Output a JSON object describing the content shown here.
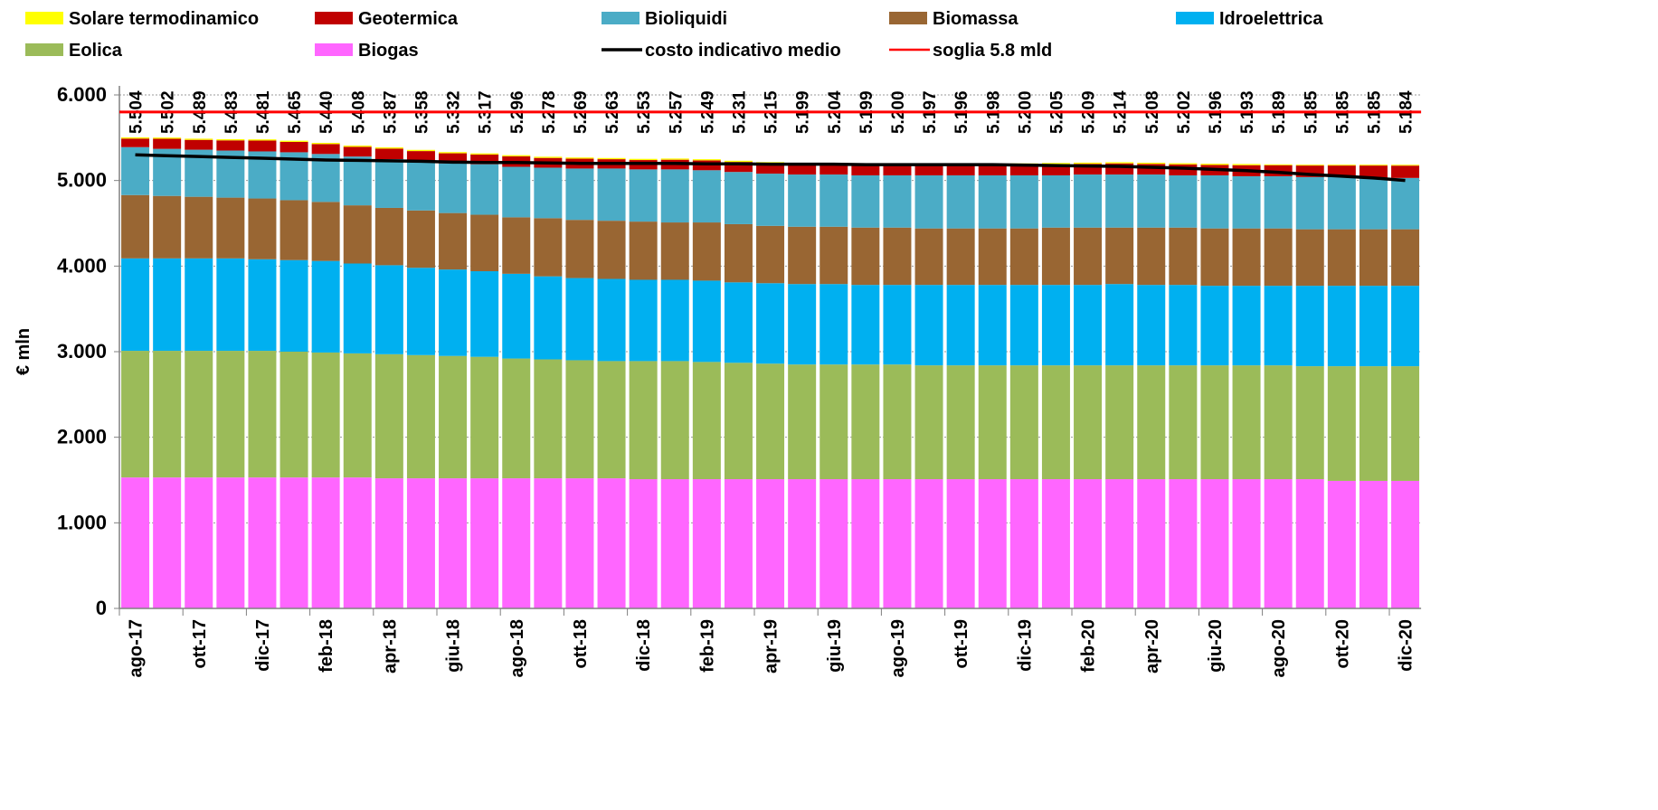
{
  "chart_data": {
    "type": "bar",
    "stacked": true,
    "y_label": "€ mln",
    "categories": [
      "ago-17",
      null,
      "ott-17",
      null,
      "dic-17",
      null,
      "feb-18",
      null,
      "apr-18",
      null,
      "giu-18",
      null,
      "ago-18",
      null,
      "ott-18",
      null,
      "dic-18",
      null,
      "feb-19",
      null,
      "apr-19",
      null,
      "giu-19",
      null,
      "ago-19",
      null,
      "ott-19",
      null,
      "dic-19",
      null,
      "feb-20",
      null,
      "apr-20",
      null,
      "giu-20",
      null,
      "ago-20",
      null,
      "ott-20",
      null,
      "dic-20"
    ],
    "ylim": [
      0,
      6000
    ],
    "yticks": [
      {
        "value": 0,
        "label": "0"
      },
      {
        "value": 1000,
        "label": "1.000"
      },
      {
        "value": 2000,
        "label": "2.000"
      },
      {
        "value": 3000,
        "label": "3.000"
      },
      {
        "value": 4000,
        "label": "4.000"
      },
      {
        "value": 5000,
        "label": "5.000"
      },
      {
        "value": 6000,
        "label": "6.000"
      }
    ],
    "grid": true,
    "series": [
      {
        "name": "Biogas",
        "color": "#ff66ff",
        "values": [
          1530,
          1530,
          1530,
          1530,
          1530,
          1530,
          1530,
          1530,
          1520,
          1520,
          1520,
          1520,
          1520,
          1520,
          1520,
          1520,
          1510,
          1510,
          1510,
          1510,
          1510,
          1510,
          1510,
          1510,
          1510,
          1510,
          1510,
          1510,
          1510,
          1510,
          1510,
          1510,
          1510,
          1510,
          1510,
          1510,
          1510,
          1510,
          1490,
          1490,
          1490
        ]
      },
      {
        "name": "Eolica",
        "color": "#9bbb59",
        "values": [
          1480,
          1480,
          1480,
          1480,
          1480,
          1470,
          1460,
          1450,
          1450,
          1440,
          1430,
          1420,
          1400,
          1390,
          1380,
          1370,
          1380,
          1380,
          1370,
          1360,
          1350,
          1340,
          1340,
          1340,
          1340,
          1330,
          1330,
          1330,
          1330,
          1330,
          1330,
          1330,
          1330,
          1330,
          1330,
          1330,
          1330,
          1320,
          1340,
          1340,
          1340
        ]
      },
      {
        "name": "Idroelettrica",
        "color": "#00b0f0",
        "values": [
          1080,
          1080,
          1080,
          1080,
          1070,
          1070,
          1070,
          1050,
          1040,
          1020,
          1010,
          1000,
          990,
          970,
          960,
          960,
          950,
          950,
          950,
          940,
          940,
          940,
          940,
          930,
          930,
          940,
          940,
          940,
          940,
          940,
          940,
          950,
          940,
          940,
          930,
          930,
          930,
          940,
          940,
          940,
          940
        ]
      },
      {
        "name": "Biomassa",
        "color": "#996633",
        "values": [
          740,
          730,
          720,
          710,
          710,
          700,
          690,
          680,
          670,
          670,
          660,
          660,
          660,
          680,
          680,
          680,
          680,
          670,
          680,
          680,
          670,
          670,
          670,
          670,
          670,
          660,
          660,
          660,
          660,
          670,
          670,
          660,
          670,
          670,
          670,
          670,
          670,
          660,
          660,
          660,
          660
        ]
      },
      {
        "name": "Bioliquidi",
        "color": "#4bacc6",
        "values": [
          560,
          550,
          550,
          550,
          550,
          560,
          560,
          570,
          570,
          570,
          580,
          590,
          590,
          590,
          600,
          610,
          610,
          620,
          610,
          610,
          610,
          610,
          610,
          610,
          610,
          620,
          620,
          620,
          620,
          610,
          620,
          620,
          620,
          610,
          620,
          610,
          610,
          610,
          610,
          600,
          600
        ]
      },
      {
        "name": "Geotermica",
        "color": "#c00000",
        "values": [
          100,
          118,
          115,
          119,
          127,
          121,
          116,
          114,
          123,
          124,
          118,
          113,
          122,
          114,
          115,
          109,
          109,
          113,
          115,
          117,
          121,
          115,
          120,
          125,
          126,
          123,
          122,
          124,
          126,
          131,
          125,
          130,
          124,
          128,
          122,
          129,
          129,
          135,
          135,
          145,
          144
        ]
      },
      {
        "name": "Solare termodinamico",
        "color": "#ffff00",
        "values": [
          14,
          14,
          14,
          14,
          14,
          14,
          14,
          14,
          14,
          14,
          14,
          14,
          14,
          14,
          14,
          14,
          14,
          14,
          14,
          14,
          14,
          14,
          14,
          14,
          14,
          14,
          14,
          14,
          14,
          14,
          14,
          14,
          14,
          14,
          14,
          14,
          10,
          10,
          10,
          10,
          10
        ]
      }
    ],
    "totals": {
      "values": [
        5504,
        5502,
        5489,
        5483,
        5481,
        5465,
        5440,
        5408,
        5387,
        5358,
        5332,
        5317,
        5296,
        5278,
        5269,
        5263,
        5253,
        5257,
        5249,
        5231,
        5215,
        5199,
        5204,
        5199,
        5200,
        5197,
        5196,
        5198,
        5200,
        5205,
        5209,
        5214,
        5208,
        5202,
        5196,
        5193,
        5189,
        5185,
        5185,
        5185,
        5184
      ],
      "value_labels": [
        "5.504",
        "5.502",
        "5.489",
        "5.483",
        "5.481",
        "5.465",
        "5.440",
        "5.408",
        "5.387",
        "5.358",
        "5.332",
        "5.317",
        "5.296",
        "5.278",
        "5.269",
        "5.263",
        "5.253",
        "5.257",
        "5.249",
        "5.231",
        "5.215",
        "5.199",
        "5.204",
        "5.199",
        "5.200",
        "5.197",
        "5.196",
        "5.198",
        "5.200",
        "5.205",
        "5.209",
        "5.214",
        "5.208",
        "5.202",
        "5.196",
        "5.193",
        "5.189",
        "5.185",
        "5.185",
        "5.185",
        "5.184"
      ]
    },
    "line_series": {
      "name": "costo indicativo medio",
      "color": "#000000",
      "values": [
        5300,
        5290,
        5280,
        5270,
        5260,
        5250,
        5240,
        5235,
        5230,
        5225,
        5215,
        5210,
        5210,
        5205,
        5200,
        5200,
        5200,
        5200,
        5195,
        5195,
        5190,
        5190,
        5190,
        5185,
        5185,
        5185,
        5185,
        5185,
        5180,
        5175,
        5170,
        5165,
        5155,
        5145,
        5130,
        5115,
        5095,
        5070,
        5050,
        5030,
        5000
      ]
    },
    "threshold": {
      "name": "soglia 5.8 mld",
      "color": "#ff0000",
      "value": 5800
    }
  }
}
